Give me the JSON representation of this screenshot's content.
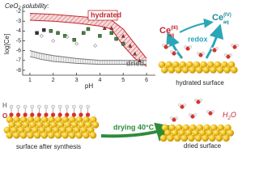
{
  "chart_data": {
    "type": "scatter",
    "title": "CeO₂ solubility:",
    "x_label": "pH",
    "y_label": "log[Ce]",
    "xlim": [
      0.69,
      6.38
    ],
    "ylim": [
      -8.5,
      -1.5
    ],
    "xticks": [
      1,
      2,
      3,
      4,
      5,
      6
    ],
    "yticks": [
      -2,
      -3,
      -4,
      -5,
      -6,
      -7,
      -8
    ],
    "bands": [
      {
        "label": "hydrated",
        "color": "#c0262d",
        "x": [
          1,
          2,
          3,
          4,
          4.5,
          5,
          5.5,
          6
        ],
        "upper": [
          -2.2,
          -2.3,
          -2.5,
          -2.7,
          -2.9,
          -3.8,
          -5.3,
          -6.8
        ],
        "lower": [
          -2.9,
          -3.0,
          -3.2,
          -3.5,
          -3.8,
          -5.5,
          -6.8,
          -7.6
        ]
      },
      {
        "label": "dried",
        "color": "#777777",
        "x": [
          1,
          1.5,
          2,
          3,
          4,
          5,
          6
        ],
        "upper": [
          -6.0,
          -6.3,
          -6.5,
          -6.8,
          -7.0,
          -7.0,
          -7.0
        ],
        "lower": [
          -6.6,
          -6.9,
          -7.1,
          -7.3,
          -7.4,
          -7.4,
          -7.4
        ]
      }
    ],
    "series": [
      {
        "color": "#3a8a3a",
        "marker": "square",
        "x": [
          1.9,
          2.2,
          2.5,
          2.9,
          3.3,
          3.5,
          4.0,
          4.5,
          4.7,
          5.0
        ],
        "values": [
          -4.0,
          -4.2,
          -4.5,
          -4.9,
          -4.2,
          -3.8,
          -4.5,
          -4.2,
          -4.8,
          -5.3
        ]
      },
      {
        "color": "#c0262d",
        "marker": "triangle",
        "x": [
          4.2,
          4.5,
          5.0,
          5.3,
          5.5,
          5.7
        ],
        "values": [
          -3.7,
          -3.7,
          -4.5,
          -5.5,
          -6.3,
          -7.0
        ]
      },
      {
        "color": "#ffffff",
        "marker": "diamond",
        "x": [
          1.5,
          2.0,
          2.6,
          3.0,
          3.8
        ],
        "values": [
          -4.5,
          -5.0,
          -4.6,
          -5.3,
          -5.5
        ]
      },
      {
        "color": "#333333",
        "marker": "square",
        "x": [
          1.3,
          1.6
        ],
        "values": [
          -4.2,
          -3.9
        ]
      }
    ]
  },
  "labels": {
    "ce3": {
      "base": "Ce",
      "sup": "(III)",
      "sub": "aq"
    },
    "ce4": {
      "base": "Ce",
      "sup": "(IV)",
      "sub": "aq"
    },
    "redox": "redox",
    "hydrated_surface": "hydrated surface",
    "water": {
      "h": "H",
      "sub": "2",
      "o": "O"
    },
    "drying": "drying 40°C",
    "dried_surface": "dried surface",
    "synthesis": "surface after synthesis",
    "atom_h": "H",
    "atom_o": "O"
  }
}
